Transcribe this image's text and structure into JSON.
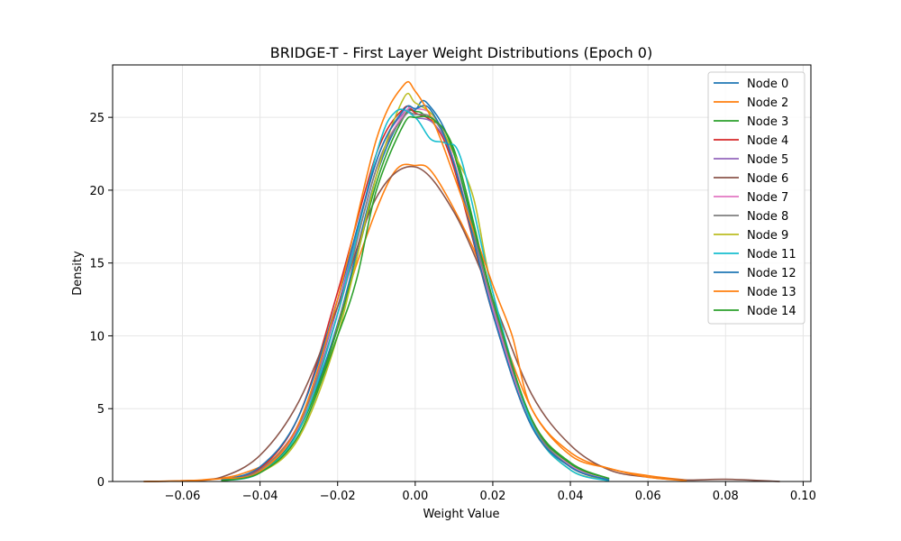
{
  "chart_data": {
    "type": "line",
    "title": "BRIDGE-T - First Layer Weight Distributions (Epoch 0)",
    "xlabel": "Weight Value",
    "ylabel": "Density",
    "xlim": [
      -0.078,
      0.102
    ],
    "ylim": [
      0,
      28.6
    ],
    "xticks": [
      -0.06,
      -0.04,
      -0.02,
      0.0,
      0.02,
      0.04,
      0.06,
      0.08,
      0.1
    ],
    "xtick_labels": [
      "−0.06",
      "−0.04",
      "−0.02",
      "0.00",
      "0.02",
      "0.04",
      "0.06",
      "0.08",
      "0.10"
    ],
    "yticks": [
      0,
      5,
      10,
      15,
      20,
      25
    ],
    "ytick_labels": [
      "0",
      "5",
      "10",
      "15",
      "20",
      "25"
    ],
    "grid": true,
    "legend_position": "top-right",
    "series": [
      {
        "name": "Node 0",
        "color": "#1f77b4",
        "points": [
          [
            -0.05,
            0.05
          ],
          [
            -0.04,
            0.8
          ],
          [
            -0.03,
            3.6
          ],
          [
            -0.02,
            10.8
          ],
          [
            -0.01,
            21.0
          ],
          [
            -0.003,
            25.2
          ],
          [
            0.0,
            25.5
          ],
          [
            0.003,
            26.0
          ],
          [
            0.01,
            22.5
          ],
          [
            0.02,
            12.0
          ],
          [
            0.03,
            4.0
          ],
          [
            0.04,
            1.0
          ],
          [
            0.05,
            0.1
          ]
        ]
      },
      {
        "name": "Node 2",
        "color": "#ff7f0e",
        "points": [
          [
            -0.055,
            0.1
          ],
          [
            -0.045,
            0.5
          ],
          [
            -0.035,
            2.0
          ],
          [
            -0.025,
            6.5
          ],
          [
            -0.015,
            15.0
          ],
          [
            -0.006,
            21.0
          ],
          [
            0.0,
            21.7
          ],
          [
            0.005,
            21.0
          ],
          [
            0.015,
            16.0
          ],
          [
            0.02,
            12.0
          ],
          [
            0.03,
            5.0
          ],
          [
            0.04,
            2.0
          ],
          [
            0.05,
            0.9
          ],
          [
            0.06,
            0.4
          ],
          [
            0.07,
            0.1
          ]
        ]
      },
      {
        "name": "Node 3",
        "color": "#2ca02c",
        "points": [
          [
            -0.05,
            0.05
          ],
          [
            -0.04,
            0.7
          ],
          [
            -0.03,
            3.5
          ],
          [
            -0.02,
            10.5
          ],
          [
            -0.01,
            20.5
          ],
          [
            -0.003,
            25.0
          ],
          [
            0.0,
            25.4
          ],
          [
            0.003,
            25.0
          ],
          [
            0.01,
            22.8
          ],
          [
            0.02,
            12.5
          ],
          [
            0.03,
            4.2
          ],
          [
            0.04,
            1.2
          ],
          [
            0.05,
            0.2
          ]
        ]
      },
      {
        "name": "Node 4",
        "color": "#d62728",
        "points": [
          [
            -0.05,
            0.05
          ],
          [
            -0.04,
            0.9
          ],
          [
            -0.03,
            4.5
          ],
          [
            -0.02,
            13.0
          ],
          [
            -0.01,
            22.5
          ],
          [
            -0.003,
            25.6
          ],
          [
            0.0,
            25.3
          ],
          [
            0.005,
            24.5
          ],
          [
            0.01,
            21.5
          ],
          [
            0.02,
            11.5
          ],
          [
            0.03,
            3.8
          ],
          [
            0.04,
            1.0
          ],
          [
            0.05,
            0.1
          ]
        ]
      },
      {
        "name": "Node 5",
        "color": "#9467bd",
        "points": [
          [
            -0.05,
            0.05
          ],
          [
            -0.04,
            0.8
          ],
          [
            -0.03,
            4.0
          ],
          [
            -0.02,
            12.0
          ],
          [
            -0.01,
            22.0
          ],
          [
            -0.003,
            25.3
          ],
          [
            0.0,
            25.0
          ],
          [
            0.005,
            24.5
          ],
          [
            0.01,
            21.8
          ],
          [
            0.02,
            11.8
          ],
          [
            0.03,
            3.9
          ],
          [
            0.04,
            1.0
          ],
          [
            0.05,
            0.1
          ]
        ]
      },
      {
        "name": "Node 6",
        "color": "#8c564b",
        "points": [
          [
            -0.07,
            0.0
          ],
          [
            -0.06,
            0.05
          ],
          [
            -0.05,
            0.3
          ],
          [
            -0.04,
            1.8
          ],
          [
            -0.03,
            5.5
          ],
          [
            -0.02,
            12.0
          ],
          [
            -0.01,
            19.5
          ],
          [
            0.0,
            21.6
          ],
          [
            0.01,
            18.5
          ],
          [
            0.02,
            12.5
          ],
          [
            0.03,
            6.0
          ],
          [
            0.04,
            2.5
          ],
          [
            0.05,
            0.8
          ],
          [
            0.06,
            0.3
          ],
          [
            0.07,
            0.1
          ],
          [
            0.08,
            0.15
          ],
          [
            0.094,
            0.0
          ]
        ]
      },
      {
        "name": "Node 7",
        "color": "#e377c2",
        "points": [
          [
            -0.05,
            0.05
          ],
          [
            -0.04,
            0.7
          ],
          [
            -0.03,
            3.8
          ],
          [
            -0.02,
            11.5
          ],
          [
            -0.01,
            21.5
          ],
          [
            -0.003,
            25.2
          ],
          [
            0.0,
            25.6
          ],
          [
            0.005,
            25.0
          ],
          [
            0.01,
            22.0
          ],
          [
            0.02,
            12.0
          ],
          [
            0.03,
            4.0
          ],
          [
            0.04,
            1.1
          ],
          [
            0.05,
            0.1
          ]
        ]
      },
      {
        "name": "Node 8",
        "color": "#7f7f7f",
        "points": [
          [
            -0.05,
            0.05
          ],
          [
            -0.04,
            0.8
          ],
          [
            -0.03,
            3.9
          ],
          [
            -0.02,
            11.5
          ],
          [
            -0.01,
            21.5
          ],
          [
            -0.003,
            25.0
          ],
          [
            0.0,
            25.2
          ],
          [
            0.005,
            24.8
          ],
          [
            0.01,
            21.8
          ],
          [
            0.02,
            12.2
          ],
          [
            0.03,
            4.1
          ],
          [
            0.04,
            1.0
          ],
          [
            0.05,
            0.1
          ]
        ]
      },
      {
        "name": "Node 9",
        "color": "#bcbd22",
        "points": [
          [
            -0.05,
            0.05
          ],
          [
            -0.04,
            0.6
          ],
          [
            -0.03,
            3.0
          ],
          [
            -0.02,
            10.0
          ],
          [
            -0.01,
            21.0
          ],
          [
            -0.003,
            26.3
          ],
          [
            0.0,
            26.0
          ],
          [
            0.005,
            25.0
          ],
          [
            0.01,
            22.5
          ],
          [
            0.015,
            19.5
          ],
          [
            0.02,
            13.0
          ],
          [
            0.03,
            4.0
          ],
          [
            0.04,
            0.8
          ],
          [
            0.05,
            0.1
          ]
        ]
      },
      {
        "name": "Node 11",
        "color": "#17becf",
        "points": [
          [
            -0.05,
            0.05
          ],
          [
            -0.04,
            0.6
          ],
          [
            -0.03,
            3.5
          ],
          [
            -0.02,
            11.5
          ],
          [
            -0.01,
            22.5
          ],
          [
            -0.005,
            25.4
          ],
          [
            0.0,
            25.0
          ],
          [
            0.004,
            23.5
          ],
          [
            0.008,
            23.2
          ],
          [
            0.012,
            22.0
          ],
          [
            0.02,
            13.0
          ],
          [
            0.03,
            4.0
          ],
          [
            0.04,
            0.8
          ],
          [
            0.05,
            0.05
          ]
        ]
      },
      {
        "name": "Node 12",
        "color": "#1f77b4",
        "points": [
          [
            -0.05,
            0.1
          ],
          [
            -0.04,
            1.0
          ],
          [
            -0.03,
            4.5
          ],
          [
            -0.02,
            12.5
          ],
          [
            -0.01,
            22.0
          ],
          [
            -0.003,
            25.5
          ],
          [
            0.0,
            25.6
          ],
          [
            0.004,
            25.5
          ],
          [
            0.01,
            21.8
          ],
          [
            0.02,
            11.5
          ],
          [
            0.03,
            3.8
          ],
          [
            0.04,
            1.0
          ],
          [
            0.05,
            0.1
          ]
        ]
      },
      {
        "name": "Node 13",
        "color": "#ff7f0e",
        "points": [
          [
            -0.07,
            0.0
          ],
          [
            -0.06,
            0.05
          ],
          [
            -0.05,
            0.2
          ],
          [
            -0.04,
            0.7
          ],
          [
            -0.03,
            4.0
          ],
          [
            -0.02,
            12.5
          ],
          [
            -0.01,
            23.5
          ],
          [
            -0.003,
            27.2
          ],
          [
            0.0,
            26.8
          ],
          [
            0.005,
            24.5
          ],
          [
            0.01,
            21.0
          ],
          [
            0.02,
            13.5
          ],
          [
            0.025,
            10.0
          ],
          [
            0.03,
            5.0
          ],
          [
            0.04,
            1.8
          ],
          [
            0.05,
            0.9
          ],
          [
            0.06,
            0.3
          ],
          [
            0.07,
            0.05
          ]
        ]
      },
      {
        "name": "Node 14",
        "color": "#2ca02c",
        "points": [
          [
            -0.05,
            0.05
          ],
          [
            -0.04,
            0.6
          ],
          [
            -0.03,
            3.2
          ],
          [
            -0.02,
            10.0
          ],
          [
            -0.015,
            14.0
          ],
          [
            -0.01,
            20.0
          ],
          [
            -0.003,
            24.5
          ],
          [
            0.0,
            25.0
          ],
          [
            0.005,
            24.8
          ],
          [
            0.01,
            22.5
          ],
          [
            0.02,
            12.5
          ],
          [
            0.03,
            4.3
          ],
          [
            0.04,
            1.3
          ],
          [
            0.05,
            0.2
          ]
        ]
      }
    ]
  }
}
